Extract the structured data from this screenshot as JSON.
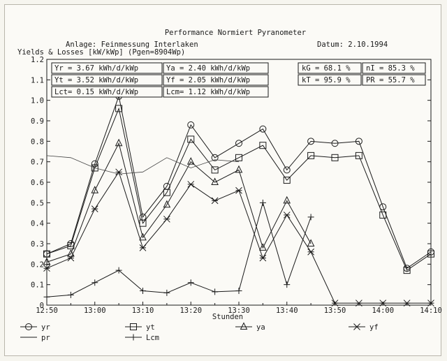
{
  "chart_data": {
    "type": "line",
    "title": "Performance Normiert Pyranometer",
    "subtitle_left": "Anlage: Feinmessung Interlaken",
    "subtitle_right": "Datum: 2.10.1994",
    "ylabel": "Yields & Losses [kW/kWp] (Pgen=8904Wp)",
    "xlabel": "Stunden",
    "xlim": [
      0,
      80
    ],
    "ylim": [
      0,
      1.2
    ],
    "x_ticks": [
      "12:50",
      "13:00",
      "13:10",
      "13:20",
      "13:30",
      "13:40",
      "13:50",
      "14:00",
      "14:10"
    ],
    "y_ticks": [
      "0",
      "0.1",
      "0.2",
      "0.3",
      "0.4",
      "0.5",
      "0.6",
      "0.7",
      "0.8",
      "0.9",
      "1.0",
      "1.1",
      "1.2"
    ],
    "x": [
      0,
      5,
      10,
      15,
      20,
      25,
      30,
      35,
      40,
      45,
      50,
      55,
      60,
      65,
      70,
      75,
      80
    ],
    "series": [
      {
        "name": "yr",
        "marker": "circle",
        "values": [
          0.25,
          0.3,
          0.69,
          1.02,
          0.43,
          0.58,
          0.88,
          0.72,
          0.79,
          0.86,
          0.66,
          0.8,
          0.79,
          0.8,
          0.48,
          0.18,
          0.26
        ]
      },
      {
        "name": "yt",
        "marker": "square",
        "values": [
          0.25,
          0.29,
          0.67,
          0.96,
          0.4,
          0.55,
          0.81,
          0.66,
          0.72,
          0.78,
          0.61,
          0.73,
          0.72,
          0.73,
          0.44,
          0.17,
          0.25
        ]
      },
      {
        "name": "ya",
        "marker": "triangle",
        "values": [
          0.21,
          0.25,
          0.56,
          0.79,
          0.33,
          0.49,
          0.7,
          0.6,
          0.66,
          0.28,
          0.51,
          0.3,
          null,
          null,
          null,
          null,
          null
        ]
      },
      {
        "name": "yf",
        "marker": "star",
        "values": [
          0.18,
          0.23,
          0.47,
          0.65,
          0.28,
          0.42,
          0.59,
          0.51,
          0.56,
          0.23,
          0.44,
          0.26,
          0.01,
          0.01,
          0.01,
          0.01,
          0.01
        ]
      },
      {
        "name": "pr",
        "marker": "none",
        "values": [
          0.73,
          0.72,
          0.67,
          0.64,
          0.65,
          0.72,
          0.67,
          0.71,
          0.7,
          null,
          null,
          null,
          null,
          null,
          null,
          null,
          null
        ]
      },
      {
        "name": "Lcm",
        "marker": "plus",
        "values": [
          0.04,
          0.05,
          0.11,
          0.17,
          0.07,
          0.06,
          0.11,
          0.065,
          0.07,
          0.5,
          0.1,
          0.43,
          null,
          null,
          null,
          null,
          null
        ]
      }
    ],
    "summary_boxes": [
      [
        "Yr = 3.67 kWh/d/kWp",
        "Ya = 2.40 kWh/d/kWp"
      ],
      [
        "Yt = 3.52 kWh/d/kWp",
        "Yf = 2.05 kWh/d/kWp"
      ],
      [
        "Lct= 0.15 kWh/d/kWp",
        "Lcm= 1.12 kWh/d/kWp"
      ]
    ],
    "ratio_boxes": [
      [
        "kG = 68.1 %",
        "nI = 85.3 %"
      ],
      [
        "kT = 95.9 %",
        "PR = 55.7 %"
      ]
    ],
    "legend": [
      {
        "label": "yr",
        "marker": "circle"
      },
      {
        "label": "yt",
        "marker": "square"
      },
      {
        "label": "ya",
        "marker": "triangle"
      },
      {
        "label": "yf",
        "marker": "star"
      },
      {
        "label": "pr",
        "marker": "none"
      },
      {
        "label": "Lcm",
        "marker": "plus"
      }
    ],
    "grid": false,
    "legend_position": "bottom"
  }
}
